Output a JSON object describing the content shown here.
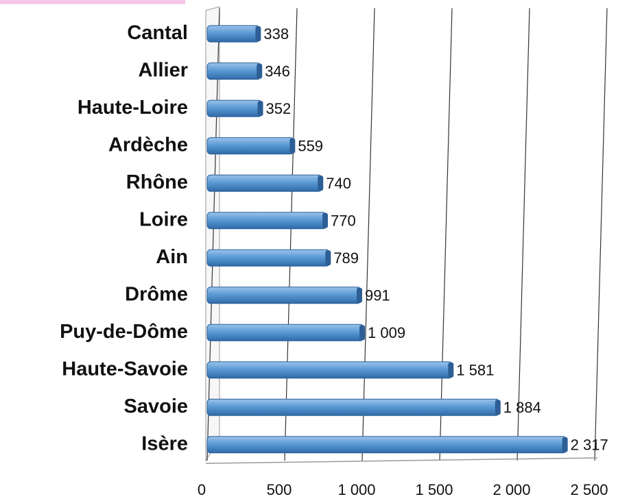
{
  "chart_data": {
    "type": "bar",
    "orientation": "horizontal",
    "categories": [
      "Cantal",
      "Allier",
      "Haute-Loire",
      "Ardèche",
      "Rhône",
      "Loire",
      "Ain",
      "Drôme",
      "Puy-de-Dôme",
      "Haute-Savoie",
      "Savoie",
      "Isère"
    ],
    "values": [
      338,
      346,
      352,
      559,
      740,
      770,
      789,
      991,
      1009,
      1581,
      1884,
      2317
    ],
    "value_labels": [
      "338",
      "346",
      "352",
      "559",
      "740",
      "770",
      "789",
      "991",
      "1 009",
      "1 581",
      "1 884",
      "2 317"
    ],
    "color": "#5b9bd5",
    "xlim": [
      0,
      2500
    ],
    "xticks": [
      0,
      500,
      {
        "value": 1000,
        "label": "1 000"
      },
      {
        "value": 1500,
        "label": "1 500"
      },
      {
        "value": 2000,
        "label": "2 000"
      },
      {
        "value": 2500,
        "label": "2 500"
      }
    ],
    "grid": true
  }
}
